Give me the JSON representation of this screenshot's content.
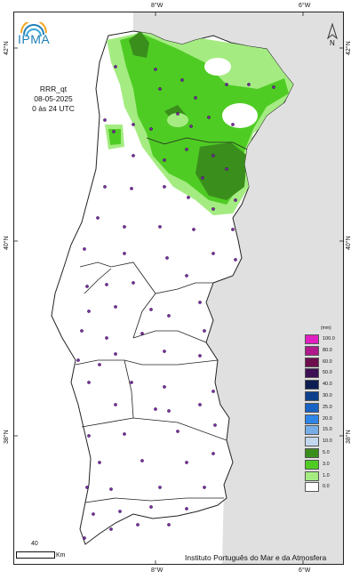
{
  "header": {
    "logo_text": "IPMA",
    "product_lines": [
      "RRR_qt",
      "08-05-2025",
      "0 às 24 UTC"
    ],
    "north_label": "N"
  },
  "axes": {
    "top_lon": [
      "8°W",
      "6°W"
    ],
    "bottom_lon": [
      "8°W",
      "6°W"
    ],
    "left_lat": [
      "42°N",
      "40°N",
      "38°N"
    ],
    "right_lat": [
      "42°N",
      "40°N",
      "38°N"
    ]
  },
  "legend": {
    "unit": "(mm)",
    "classes": [
      {
        "label": "100.0",
        "color": "#e020c0"
      },
      {
        "label": "80.0",
        "color": "#b0188c"
      },
      {
        "label": "60.0",
        "color": "#6e0f4c"
      },
      {
        "label": "50.0",
        "color": "#3d0f55"
      },
      {
        "label": "40.0",
        "color": "#0d1f52"
      },
      {
        "label": "30.0",
        "color": "#0d3f8a"
      },
      {
        "label": "25.0",
        "color": "#1862c4"
      },
      {
        "label": "20.0",
        "color": "#2f86e8"
      },
      {
        "label": "15.0",
        "color": "#78aee8"
      },
      {
        "label": "10.0",
        "color": "#c2d8ee"
      },
      {
        "label": "5.0",
        "color": "#3a8e1c"
      },
      {
        "label": "3.0",
        "color": "#4fcc24"
      },
      {
        "label": "1.0",
        "color": "#a4ec82"
      },
      {
        "label": "0.0",
        "color": "#ffffff"
      }
    ]
  },
  "scale": {
    "value": "40",
    "unit": "Km"
  },
  "credit": "Instituto Português do Mar e da Atmosfera",
  "colors": {
    "land": "#ffffff",
    "spain": "#e0e0e0",
    "sea": "#ffffff",
    "border": "#222222"
  }
}
